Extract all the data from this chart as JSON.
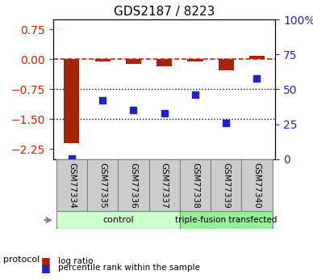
{
  "title": "GDS2187 / 8223",
  "samples": [
    "GSM77334",
    "GSM77335",
    "GSM77336",
    "GSM77337",
    "GSM77338",
    "GSM77339",
    "GSM77340"
  ],
  "log_ratio": [
    -2.1,
    -0.05,
    -0.12,
    -0.17,
    -0.05,
    -0.28,
    0.08
  ],
  "percentile_rank": [
    0.5,
    42,
    35,
    33,
    46,
    26,
    58
  ],
  "ylim_left": [
    -2.5,
    1.0
  ],
  "ylim_right": [
    0,
    100
  ],
  "yticks_left": [
    0.75,
    0,
    -0.75,
    -1.5,
    -2.25
  ],
  "yticks_right": [
    100,
    75,
    50,
    25,
    0
  ],
  "hlines": [
    0,
    -0.75,
    -1.5
  ],
  "bar_color": "#aa2200",
  "scatter_color": "#2222cc",
  "dashed_color": "#cc2200",
  "control_group": [
    0,
    1,
    2,
    3
  ],
  "triple_group": [
    4,
    5,
    6
  ],
  "control_label": "control",
  "triple_label": "triple-fusion transfected",
  "protocol_label": "protocol",
  "legend_bar": "log ratio",
  "legend_scatter": "percentile rank within the sample",
  "control_color": "#ccffcc",
  "triple_color": "#99ee99",
  "sample_box_color": "#cccccc",
  "dotted_hlines": [
    -0.75,
    -1.5
  ]
}
